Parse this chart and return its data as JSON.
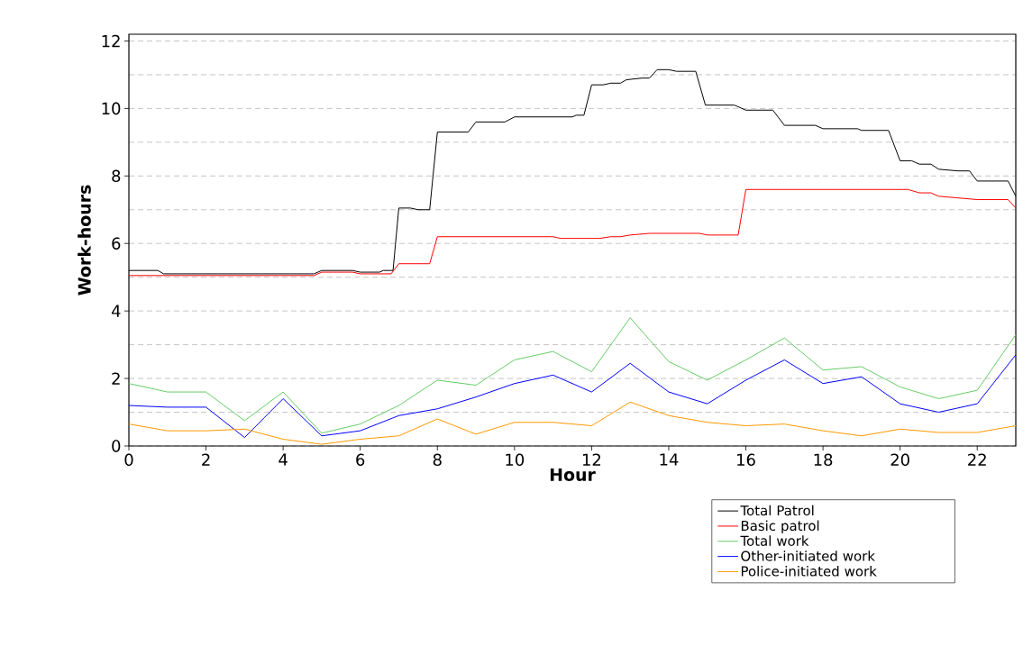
{
  "chart_data": {
    "type": "line",
    "xlabel": "Hour",
    "ylabel": "Work-hours",
    "xlim": [
      0,
      23
    ],
    "ylim": [
      0,
      12.2
    ],
    "xticks": [
      0,
      2,
      4,
      6,
      8,
      10,
      12,
      14,
      16,
      18,
      20,
      22
    ],
    "yticks": [
      0,
      {
        "value": 1,
        "label": null
      },
      2,
      {
        "value": 3,
        "label": null
      },
      4,
      {
        "value": 5,
        "label": null
      },
      6,
      {
        "value": 7,
        "label": null
      },
      8,
      {
        "value": 9,
        "label": null
      },
      10,
      {
        "value": 11,
        "label": null
      },
      12
    ],
    "grid": "y",
    "legend": "bottom right",
    "line_style": "solid",
    "marker": "none",
    "series": [
      {
        "name": "Total Patrol",
        "color": "#000000",
        "x": [
          0,
          0.75,
          0.9,
          4.8,
          5,
          5.8,
          6,
          6.5,
          6.6,
          6.85,
          7,
          7.3,
          7.5,
          7.8,
          8,
          8.8,
          9,
          9.75,
          10,
          11.5,
          11.6,
          11.8,
          12,
          12.3,
          12.5,
          12.75,
          12.9,
          13.3,
          13.5,
          13.7,
          14,
          14.2,
          14.7,
          14.95,
          15.7,
          16,
          16.7,
          17,
          17.8,
          18,
          18.9,
          19,
          19.7,
          20,
          20.3,
          20.5,
          20.8,
          21,
          21.5,
          21.8,
          22,
          22.8,
          23
        ],
        "values": [
          5.2,
          5.2,
          5.1,
          5.1,
          5.2,
          5.2,
          5.15,
          5.15,
          5.2,
          5.2,
          7.05,
          7.05,
          7.0,
          7.0,
          9.3,
          9.3,
          9.6,
          9.6,
          9.75,
          9.75,
          9.8,
          9.8,
          10.7,
          10.7,
          10.75,
          10.75,
          10.85,
          10.9,
          10.9,
          11.15,
          11.15,
          11.1,
          11.1,
          10.1,
          10.1,
          9.95,
          9.95,
          9.5,
          9.5,
          9.4,
          9.4,
          9.35,
          9.35,
          8.45,
          8.45,
          8.35,
          8.35,
          8.2,
          8.15,
          8.15,
          7.85,
          7.85,
          7.4
        ]
      },
      {
        "name": "Basic patrol",
        "color": "#ff0000",
        "x": [
          0,
          4.8,
          5,
          5.8,
          6,
          6.8,
          7,
          7.8,
          8,
          11,
          11.2,
          12.2,
          12.5,
          12.75,
          13,
          13.5,
          14.8,
          15,
          15.8,
          16,
          20.2,
          20.5,
          20.8,
          21,
          21.5,
          22,
          22.8,
          23
        ],
        "values": [
          5.05,
          5.05,
          5.15,
          5.15,
          5.1,
          5.1,
          5.4,
          5.4,
          6.2,
          6.2,
          6.15,
          6.15,
          6.2,
          6.2,
          6.25,
          6.3,
          6.3,
          6.25,
          6.25,
          7.6,
          7.6,
          7.5,
          7.5,
          7.4,
          7.35,
          7.3,
          7.3,
          7.05
        ]
      },
      {
        "name": "Total work",
        "color": "#66cc66",
        "x": [
          0,
          1,
          2,
          3,
          4,
          5,
          6,
          7,
          8,
          9,
          10,
          11,
          12,
          13,
          14,
          15,
          16,
          17,
          18,
          19,
          20,
          21,
          22,
          23
        ],
        "values": [
          1.85,
          1.6,
          1.6,
          0.75,
          1.6,
          0.38,
          0.65,
          1.2,
          1.95,
          1.8,
          2.55,
          2.8,
          2.2,
          3.8,
          2.5,
          1.95,
          2.55,
          3.2,
          2.25,
          2.35,
          1.75,
          1.4,
          1.65,
          3.3
        ]
      },
      {
        "name": "Other-initiated work",
        "color": "#0000ff",
        "x": [
          0,
          1,
          2,
          3,
          4,
          5,
          6,
          7,
          8,
          9,
          10,
          11,
          12,
          13,
          14,
          15,
          16,
          17,
          18,
          19,
          20,
          21,
          22,
          23
        ],
        "values": [
          1.2,
          1.15,
          1.15,
          0.25,
          1.4,
          0.3,
          0.45,
          0.9,
          1.1,
          1.45,
          1.85,
          2.1,
          1.6,
          2.45,
          1.6,
          1.25,
          1.95,
          2.55,
          1.85,
          2.05,
          1.25,
          1.0,
          1.25,
          2.7
        ]
      },
      {
        "name": "Police-initiated work",
        "color": "#ff9900",
        "x": [
          0,
          1,
          2,
          3,
          4,
          5,
          6,
          7,
          8,
          9,
          10,
          11,
          12,
          13,
          14,
          15,
          16,
          17,
          18,
          19,
          20,
          21,
          22,
          23
        ],
        "values": [
          0.65,
          0.45,
          0.45,
          0.5,
          0.2,
          0.05,
          0.2,
          0.3,
          0.8,
          0.35,
          0.7,
          0.7,
          0.6,
          1.3,
          0.9,
          0.7,
          0.6,
          0.65,
          0.45,
          0.3,
          0.5,
          0.4,
          0.4,
          0.6
        ]
      }
    ]
  }
}
